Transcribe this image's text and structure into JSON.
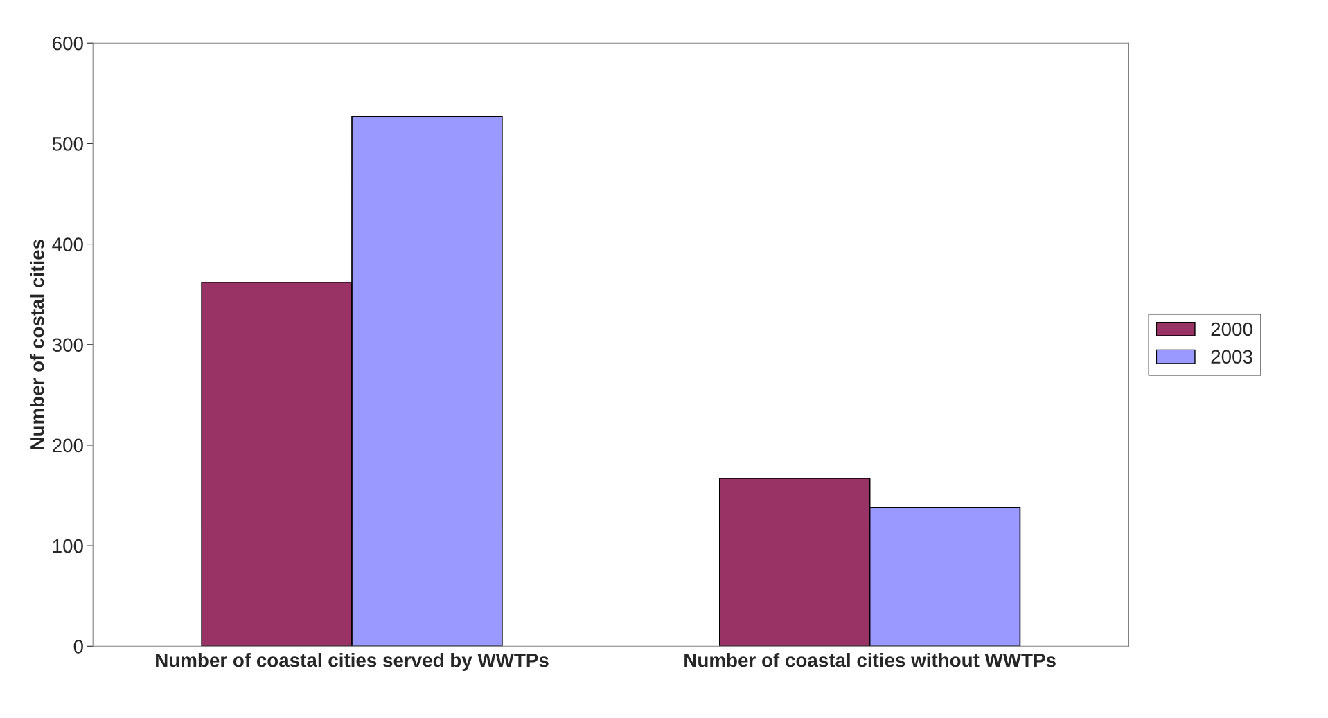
{
  "chart_data": {
    "type": "bar",
    "ylabel": "Number of costal cities",
    "categories": [
      "Number of coastal cities served by WWTPs",
      "Number of coastal cities without WWTPs"
    ],
    "series": [
      {
        "name": "2000",
        "color": "#993366",
        "values": [
          362,
          167
        ]
      },
      {
        "name": "2003",
        "color": "#9999ff",
        "values": [
          527,
          138
        ]
      }
    ],
    "ylim": [
      0,
      600
    ],
    "yticks": [
      0,
      100,
      200,
      300,
      400,
      500,
      600
    ],
    "grid": false,
    "legend": "right"
  }
}
